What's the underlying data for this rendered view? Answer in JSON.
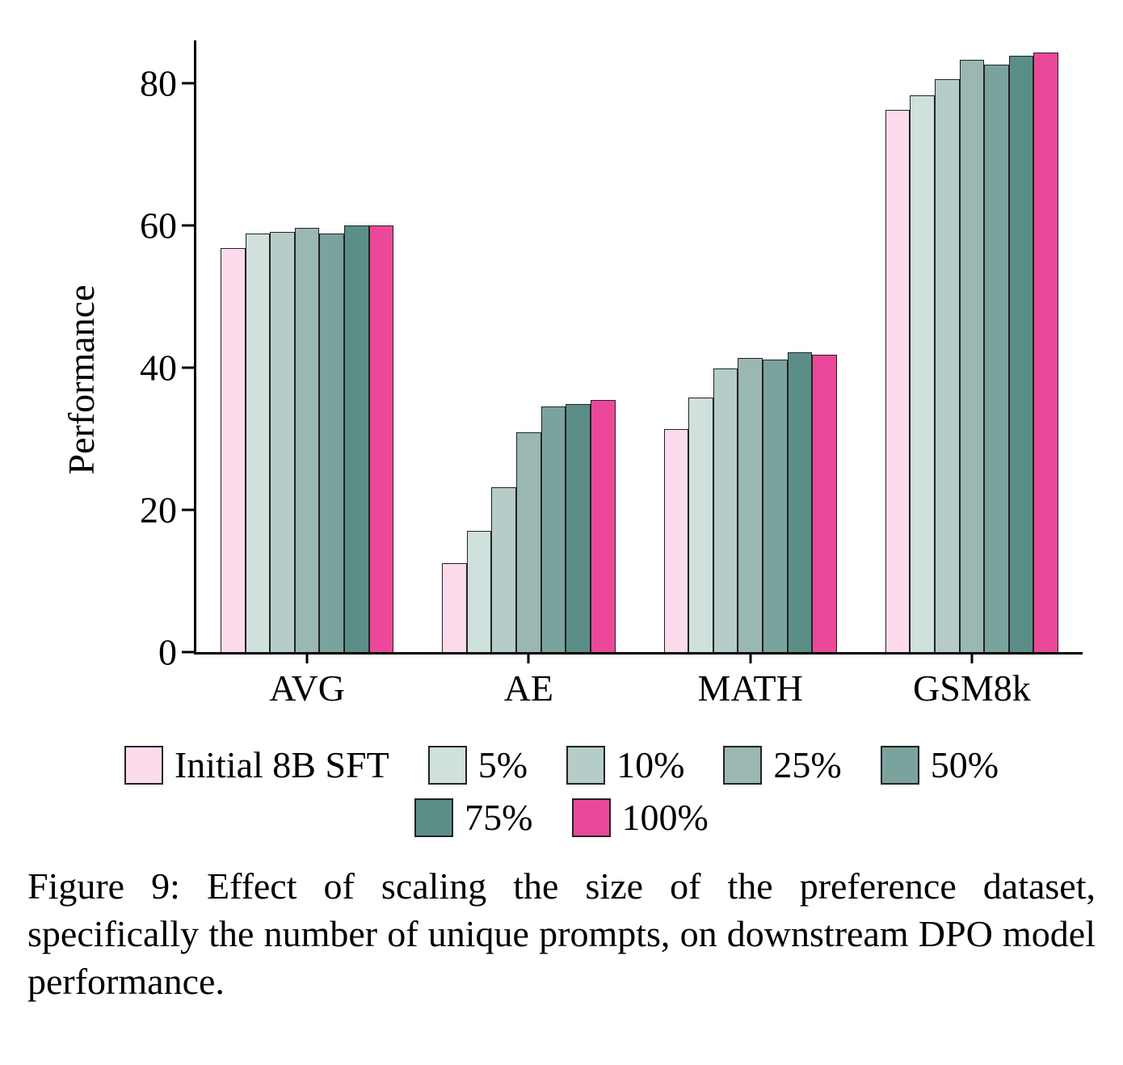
{
  "chart": {
    "type": "bar",
    "ylabel": "Performance",
    "ylim": [
      0,
      86
    ],
    "yticks": [
      0,
      20,
      40,
      60,
      80
    ],
    "categories": [
      "AVG",
      "AE",
      "MATH",
      "GSM8k"
    ],
    "series": [
      {
        "name": "Initial 8B SFT",
        "color": "#fcdbec",
        "values": [
          56.8,
          12.5,
          31.4,
          76.2
        ]
      },
      {
        "name": "5%",
        "color": "#cfe0dd",
        "values": [
          58.8,
          17.0,
          35.8,
          78.3
        ]
      },
      {
        "name": "10%",
        "color": "#b6ccc8",
        "values": [
          59.1,
          23.2,
          39.9,
          80.5
        ]
      },
      {
        "name": "25%",
        "color": "#9ab7b2",
        "values": [
          59.6,
          30.9,
          41.3,
          83.3
        ]
      },
      {
        "name": "50%",
        "color": "#7ba39d",
        "values": [
          58.8,
          34.5,
          41.1,
          82.6
        ]
      },
      {
        "name": "75%",
        "color": "#5c8e88",
        "values": [
          60.0,
          34.9,
          42.1,
          83.8
        ]
      },
      {
        "name": "100%",
        "color": "#ec4899",
        "values": [
          60.0,
          35.5,
          41.8,
          84.3
        ]
      }
    ],
    "label_fontsize": 46,
    "background_color": "#ffffff",
    "bar_border_color": "#222222",
    "axis_color": "#000000",
    "axis_width": 3
  },
  "caption": "Figure 9: Effect of scaling the size of the preference dataset, specifically the number of unique prompts, on downstream DPO model performance."
}
